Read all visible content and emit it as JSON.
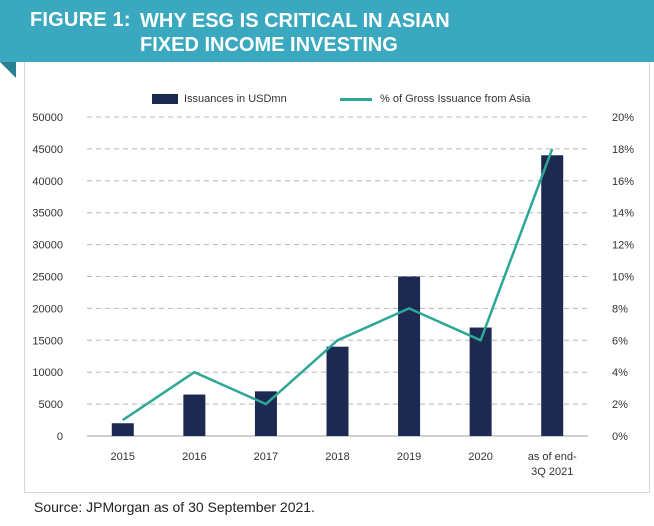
{
  "figure": {
    "label": "FIGURE 1:",
    "title_line1": "WHY ESG IS CRITICAL IN ASIAN",
    "title_line2": "FIXED INCOME INVESTING"
  },
  "source": "Source: JPMorgan as of 30 September 2021.",
  "colors": {
    "banner": "#3aa9bf",
    "bar": "#1c2a52",
    "line": "#2da796"
  },
  "chart_data": {
    "type": "bar",
    "categories": [
      "2015",
      "2016",
      "2017",
      "2018",
      "2019",
      "2020",
      "as of end-3Q 2021"
    ],
    "category_labels": [
      [
        "2015"
      ],
      [
        "2016"
      ],
      [
        "2017"
      ],
      [
        "2018"
      ],
      [
        "2019"
      ],
      [
        "2020"
      ],
      [
        "as of end-",
        "3Q 2021"
      ]
    ],
    "series": [
      {
        "name": "Issuances in USDmn",
        "type": "bar",
        "axis": "left",
        "values": [
          2000,
          6500,
          7000,
          14000,
          25000,
          17000,
          44000
        ]
      },
      {
        "name": "% of Gross Issuance from Asia",
        "type": "line",
        "axis": "right",
        "values": [
          1,
          4,
          2,
          6,
          8,
          6,
          18
        ]
      }
    ],
    "ylim": [
      0,
      50000
    ],
    "y_ticks": [
      "0",
      "5000",
      "10000",
      "15000",
      "20000",
      "25000",
      "30000",
      "35000",
      "40000",
      "45000",
      "50000"
    ],
    "y2lim": [
      0,
      20
    ],
    "y2_ticks": [
      "0%",
      "2%",
      "4%",
      "6%",
      "8%",
      "10%",
      "12%",
      "14%",
      "16%",
      "18%",
      "20%"
    ],
    "legend_position": "top-center",
    "grid": "horizontal dashed"
  }
}
